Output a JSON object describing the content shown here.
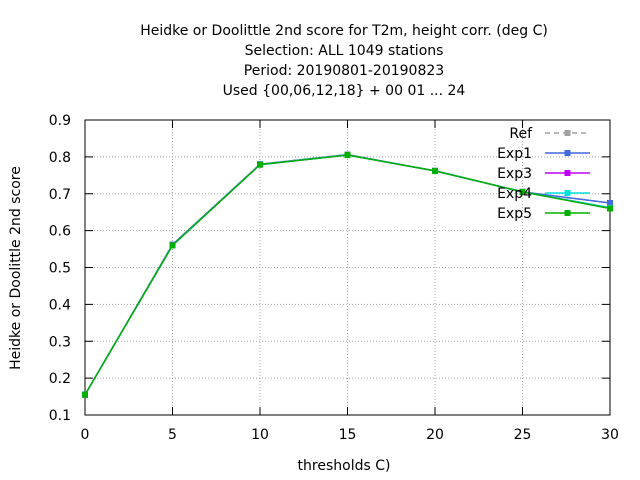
{
  "chart_data": {
    "type": "line",
    "title_lines": [
      "Heidke or Doolittle 2nd score  for T2m, height corr. (deg C)",
      "Selection: ALL    1049 stations",
      "Period: 20190801-20190823",
      "Used {00,06,12,18} + 00 01 ... 24"
    ],
    "xlabel": "thresholds C)",
    "ylabel": "Heidke or Doolittle 2nd score",
    "xlim": [
      0,
      30
    ],
    "ylim": [
      0.1,
      0.9
    ],
    "xticks": [
      0,
      5,
      10,
      15,
      20,
      25,
      30
    ],
    "yticks": [
      0.1,
      0.2,
      0.3,
      0.4,
      0.5,
      0.6,
      0.7,
      0.8,
      0.9
    ],
    "xtick_labels": [
      "0",
      "5",
      "10",
      "15",
      "20",
      "25",
      "30"
    ],
    "ytick_labels": [
      "0.1",
      "0.2",
      "0.3",
      "0.4",
      "0.5",
      "0.6",
      "0.7",
      "0.8",
      "0.9"
    ],
    "grid": true,
    "legend_position": "top-right",
    "x": [
      0,
      5,
      10,
      15,
      20,
      25,
      30
    ],
    "series": [
      {
        "name": "Ref",
        "color": "#a0a0a0",
        "dashed": true,
        "values": [
          0.155,
          0.562,
          0.78,
          0.806,
          0.762,
          0.705,
          0.675
        ]
      },
      {
        "name": "Exp1",
        "color": "#4169e1",
        "dashed": false,
        "values": [
          0.155,
          0.562,
          0.78,
          0.806,
          0.762,
          0.705,
          0.675
        ]
      },
      {
        "name": "Exp3",
        "color": "#c000ff",
        "dashed": false,
        "values": [
          0.155,
          0.56,
          0.779,
          0.805,
          0.762,
          0.705,
          0.662
        ]
      },
      {
        "name": "Exp4",
        "color": "#00e0e0",
        "dashed": false,
        "values": [
          0.155,
          0.56,
          0.779,
          0.805,
          0.762,
          0.705,
          0.662
        ]
      },
      {
        "name": "Exp5",
        "color": "#00b000",
        "dashed": false,
        "values": [
          0.155,
          0.56,
          0.779,
          0.805,
          0.762,
          0.705,
          0.66
        ]
      }
    ]
  }
}
